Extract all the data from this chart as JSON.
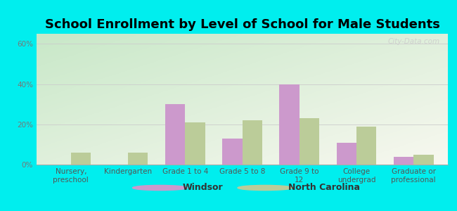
{
  "title": "School Enrollment by Level of School for Male Students",
  "categories": [
    "Nursery,\npreschool",
    "Kindergarten",
    "Grade 1 to 4",
    "Grade 5 to 8",
    "Grade 9 to\n12",
    "College\nundergrad",
    "Graduate or\nprofessional"
  ],
  "windsor_values": [
    0,
    0,
    30,
    13,
    40,
    11,
    4
  ],
  "nc_values": [
    6,
    6,
    21,
    22,
    23,
    19,
    5
  ],
  "windsor_color": "#cc99cc",
  "nc_color": "#bbcc99",
  "bar_width": 0.35,
  "ylim": [
    0,
    65
  ],
  "yticks": [
    0,
    20,
    40,
    60
  ],
  "ytick_labels": [
    "0%",
    "20%",
    "40%",
    "60%"
  ],
  "background_color": "#00eeee",
  "gradient_top_left": "#c8e8c8",
  "gradient_bottom_right": "#f8f8f0",
  "title_fontsize": 13,
  "tick_fontsize": 7.5,
  "legend_labels": [
    "Windsor",
    "North Carolina"
  ],
  "watermark": "City-Data.com"
}
